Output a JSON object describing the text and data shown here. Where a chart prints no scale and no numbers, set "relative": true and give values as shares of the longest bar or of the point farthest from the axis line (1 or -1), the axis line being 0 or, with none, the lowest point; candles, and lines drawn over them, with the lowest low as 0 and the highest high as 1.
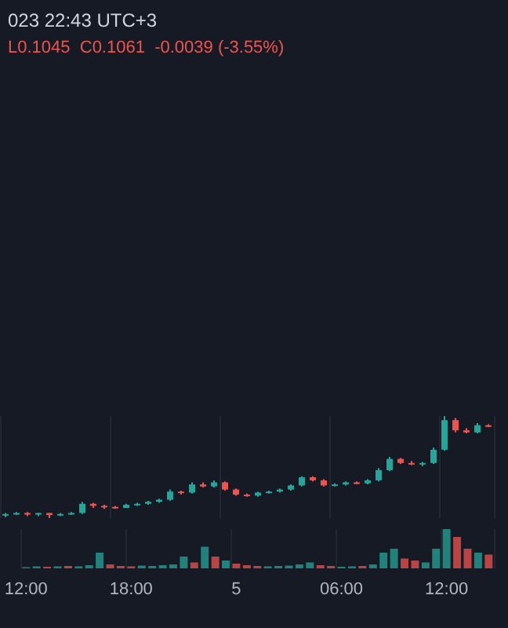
{
  "chart_data": [
    {
      "type": "candlestick",
      "title": "023 22:43 UTC+3",
      "subtitle": "L0.1045  C0.1061  -0.0039 (-3.55%)",
      "relative": true,
      "grid": "x",
      "categories": [
        null,
        null,
        null,
        null,
        null,
        null,
        null,
        null,
        null,
        null,
        null,
        null,
        null,
        null,
        null,
        null,
        null,
        null,
        null,
        null,
        null,
        null,
        null,
        null,
        null,
        null,
        null,
        null,
        null,
        null,
        null,
        null,
        null,
        null,
        null,
        null,
        null,
        null,
        null,
        null,
        null,
        null,
        null,
        null,
        null
      ],
      "ohlc": [
        [
          0.03,
          0.05,
          0.01,
          0.04
        ],
        [
          0.04,
          0.06,
          0.03,
          0.05
        ],
        [
          0.05,
          0.06,
          0.02,
          0.04
        ],
        [
          0.04,
          0.05,
          0.02,
          0.05
        ],
        [
          0.05,
          0.05,
          0,
          0.03
        ],
        [
          0.03,
          0.05,
          0.02,
          0.04
        ],
        [
          0.04,
          0.06,
          0.03,
          0.05
        ],
        [
          0.05,
          0.16,
          0.04,
          0.14
        ],
        [
          0.14,
          0.15,
          0.1,
          0.12
        ],
        [
          0.12,
          0.13,
          0.09,
          0.11
        ],
        [
          0.11,
          0.12,
          0.09,
          0.1
        ],
        [
          0.1,
          0.14,
          0.1,
          0.13
        ],
        [
          0.13,
          0.15,
          0.12,
          0.14
        ],
        [
          0.14,
          0.17,
          0.13,
          0.16
        ],
        [
          0.16,
          0.19,
          0.15,
          0.18
        ],
        [
          0.18,
          0.28,
          0.17,
          0.26
        ],
        [
          0.26,
          0.27,
          0.23,
          0.25
        ],
        [
          0.25,
          0.35,
          0.24,
          0.33
        ],
        [
          0.33,
          0.35,
          0.3,
          0.31
        ],
        [
          0.31,
          0.37,
          0.3,
          0.35
        ],
        [
          0.35,
          0.36,
          0.27,
          0.28
        ],
        [
          0.28,
          0.29,
          0.22,
          0.23
        ],
        [
          0.23,
          0.24,
          0.21,
          0.22
        ],
        [
          0.22,
          0.26,
          0.21,
          0.25
        ],
        [
          0.25,
          0.27,
          0.24,
          0.26
        ],
        [
          0.26,
          0.29,
          0.25,
          0.28
        ],
        [
          0.28,
          0.33,
          0.27,
          0.32
        ],
        [
          0.32,
          0.41,
          0.31,
          0.4
        ],
        [
          0.4,
          0.41,
          0.36,
          0.37
        ],
        [
          0.37,
          0.38,
          0.31,
          0.32
        ],
        [
          0.32,
          0.34,
          0.31,
          0.33
        ],
        [
          0.33,
          0.36,
          0.32,
          0.35
        ],
        [
          0.35,
          0.36,
          0.33,
          0.34
        ],
        [
          0.34,
          0.38,
          0.33,
          0.37
        ],
        [
          0.37,
          0.49,
          0.36,
          0.47
        ],
        [
          0.47,
          0.6,
          0.46,
          0.58
        ],
        [
          0.58,
          0.59,
          0.53,
          0.54
        ],
        [
          0.54,
          0.56,
          0.52,
          0.53
        ],
        [
          0.53,
          0.55,
          0.51,
          0.54
        ],
        [
          0.54,
          0.69,
          0.53,
          0.67
        ],
        [
          0.67,
          1,
          0.66,
          0.96
        ],
        [
          0.96,
          0.98,
          0.84,
          0.86
        ],
        [
          0.86,
          0.88,
          0.83,
          0.84
        ],
        [
          0.84,
          0.93,
          0.83,
          0.91
        ],
        [
          0.91,
          0.92,
          0.89,
          0.9
        ]
      ],
      "colors": [
        "#26a69a",
        "#26a69a",
        "#ef5350",
        "#26a69a",
        "#ef5350",
        "#26a69a",
        "#26a69a",
        "#26a69a",
        "#ef5350",
        "#ef5350",
        "#ef5350",
        "#26a69a",
        "#26a69a",
        "#26a69a",
        "#26a69a",
        "#26a69a",
        "#ef5350",
        "#26a69a",
        "#ef5350",
        "#26a69a",
        "#ef5350",
        "#ef5350",
        "#ef5350",
        "#26a69a",
        "#26a69a",
        "#26a69a",
        "#26a69a",
        "#26a69a",
        "#ef5350",
        "#ef5350",
        "#26a69a",
        "#26a69a",
        "#ef5350",
        "#26a69a",
        "#26a69a",
        "#26a69a",
        "#ef5350",
        "#ef5350",
        "#26a69a",
        "#26a69a",
        "#26a69a",
        "#ef5350",
        "#ef5350",
        "#26a69a",
        "#ef5350"
      ]
    },
    {
      "type": "bar",
      "relative": true,
      "grid": "x",
      "tick_labels": "x",
      "categories": [
        "12:00",
        null,
        null,
        null,
        null,
        null,
        null,
        null,
        null,
        null,
        "18:00",
        null,
        null,
        null,
        null,
        null,
        null,
        null,
        null,
        null,
        "5",
        null,
        null,
        null,
        null,
        null,
        null,
        null,
        null,
        null,
        "06:00",
        null,
        null,
        null,
        null,
        null,
        null,
        null,
        null,
        null,
        "12:00",
        null,
        null,
        null,
        null
      ],
      "values": [
        0.03,
        0.05,
        0.04,
        0.05,
        0.06,
        0.05,
        0.08,
        0.4,
        0.1,
        0.06,
        0.05,
        0.07,
        0.06,
        0.08,
        0.1,
        0.3,
        0.15,
        0.55,
        0.3,
        0.2,
        0.12,
        0.08,
        0.06,
        0.05,
        0.06,
        0.07,
        0.1,
        0.15,
        0.08,
        0.06,
        0.04,
        0.05,
        0.06,
        0.1,
        0.4,
        0.5,
        0.25,
        0.2,
        0.15,
        0.5,
        1,
        0.8,
        0.5,
        0.4,
        0.35
      ],
      "colors": [
        "#26a69a",
        "#26a69a",
        "#ef5350",
        "#26a69a",
        "#ef5350",
        "#26a69a",
        "#26a69a",
        "#26a69a",
        "#ef5350",
        "#ef5350",
        "#ef5350",
        "#26a69a",
        "#26a69a",
        "#26a69a",
        "#26a69a",
        "#26a69a",
        "#ef5350",
        "#26a69a",
        "#ef5350",
        "#26a69a",
        "#ef5350",
        "#ef5350",
        "#ef5350",
        "#26a69a",
        "#26a69a",
        "#26a69a",
        "#26a69a",
        "#26a69a",
        "#ef5350",
        "#ef5350",
        "#26a69a",
        "#26a69a",
        "#ef5350",
        "#26a69a",
        "#26a69a",
        "#26a69a",
        "#ef5350",
        "#ef5350",
        "#26a69a",
        "#26a69a",
        "#26a69a",
        "#ef5350",
        "#ef5350",
        "#26a69a",
        "#ef5350"
      ]
    }
  ]
}
